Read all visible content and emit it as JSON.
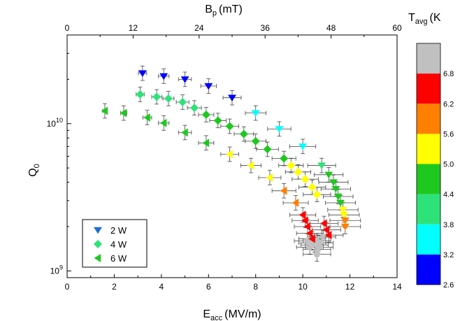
{
  "chart_data": {
    "type": "scatter",
    "title": "",
    "xlabel": "E",
    "xlabel_sub": "acc",
    "xlabel_unit": "(MV/m)",
    "ylabel": "Q",
    "ylabel_sub": "0",
    "top_xlabel": "B",
    "top_xlabel_sub": "p",
    "top_xlabel_unit": "(mT)",
    "xlim": [
      0,
      14
    ],
    "ylim": [
      900000000,
      40000000000
    ],
    "ylog": true,
    "x_ticks": [
      "0",
      "2",
      "4",
      "6",
      "8",
      "10",
      "12",
      "14"
    ],
    "top_x_ticks": [
      "0",
      "12",
      "24",
      "36",
      "48",
      "60"
    ],
    "y_ticks": [
      {
        "value": 1000000000,
        "base": "10",
        "exp": "9"
      },
      {
        "value": 10000000000,
        "base": "10",
        "exp": "10"
      }
    ],
    "legend_position": "bottom-left",
    "colorbar": {
      "title": "T",
      "title_sub": "avg",
      "title_unit": "(K",
      "ticks": [
        "2.6",
        "3.2",
        "3.8",
        "4.4",
        "5.0",
        "5.6",
        "6.2",
        "6.8"
      ],
      "bands": [
        {
          "from": 2.6,
          "to": 3.2,
          "color": "#0000ff"
        },
        {
          "from": 3.2,
          "to": 3.8,
          "color": "#00ffff"
        },
        {
          "from": 3.8,
          "to": 4.4,
          "color": "#2ee27a"
        },
        {
          "from": 4.4,
          "to": 5.0,
          "color": "#1fc81f"
        },
        {
          "from": 5.0,
          "to": 5.6,
          "color": "#ffff00"
        },
        {
          "from": 5.6,
          "to": 6.2,
          "color": "#ff7f00"
        },
        {
          "from": 6.2,
          "to": 6.8,
          "color": "#ff0000"
        },
        {
          "from": 6.8,
          "to": 7.4,
          "color": "#c0c0c0"
        }
      ]
    },
    "series": [
      {
        "name": "2 W",
        "marker": "triangle-down",
        "legend_color": "#1e6fd0",
        "points": [
          {
            "x": 3.2,
            "y": 22000000000,
            "t": 3.0
          },
          {
            "x": 4.1,
            "y": 21000000000,
            "t": 3.0
          },
          {
            "x": 5.0,
            "y": 20000000000,
            "t": 3.0
          },
          {
            "x": 6.0,
            "y": 18000000000,
            "t": 3.0
          },
          {
            "x": 7.0,
            "y": 15000000000,
            "t": 3.0
          },
          {
            "x": 8.0,
            "y": 11800000000,
            "t": 3.4
          },
          {
            "x": 9.0,
            "y": 9200000000,
            "t": 3.4
          },
          {
            "x": 10.0,
            "y": 7000000000,
            "t": 3.4
          },
          {
            "x": 10.8,
            "y": 5200000000,
            "t": 4.2
          },
          {
            "x": 11.1,
            "y": 4500000000,
            "t": 4.6
          },
          {
            "x": 11.3,
            "y": 4000000000,
            "t": 4.6
          },
          {
            "x": 11.4,
            "y": 3600000000,
            "t": 4.6
          },
          {
            "x": 11.5,
            "y": 3200000000,
            "t": 4.6
          },
          {
            "x": 11.6,
            "y": 2900000000,
            "t": 4.6
          },
          {
            "x": 11.7,
            "y": 2600000000,
            "t": 5.2
          },
          {
            "x": 11.75,
            "y": 2400000000,
            "t": 5.4
          },
          {
            "x": 11.8,
            "y": 2200000000,
            "t": 5.8
          },
          {
            "x": 11.8,
            "y": 2000000000,
            "t": 5.8
          }
        ]
      },
      {
        "name": "4 W",
        "marker": "diamond",
        "legend_color": "#2ee27a",
        "points": [
          {
            "x": 3.1,
            "y": 15800000000,
            "t": 4.0
          },
          {
            "x": 3.8,
            "y": 15200000000,
            "t": 4.0
          },
          {
            "x": 4.3,
            "y": 14800000000,
            "t": 4.0
          },
          {
            "x": 4.9,
            "y": 14000000000,
            "t": 4.0
          },
          {
            "x": 5.4,
            "y": 12800000000,
            "t": 4.0
          },
          {
            "x": 5.9,
            "y": 11500000000,
            "t": 4.6
          },
          {
            "x": 6.4,
            "y": 10500000000,
            "t": 4.6
          },
          {
            "x": 6.9,
            "y": 9600000000,
            "t": 4.6
          },
          {
            "x": 7.5,
            "y": 8500000000,
            "t": 4.6
          },
          {
            "x": 8.0,
            "y": 7600000000,
            "t": 4.6
          },
          {
            "x": 8.5,
            "y": 6700000000,
            "t": 4.6
          },
          {
            "x": 9.2,
            "y": 5800000000,
            "t": 4.6
          },
          {
            "x": 9.5,
            "y": 5200000000,
            "t": 5.2
          },
          {
            "x": 9.8,
            "y": 4700000000,
            "t": 5.2
          },
          {
            "x": 10.1,
            "y": 4200000000,
            "t": 5.2
          },
          {
            "x": 10.4,
            "y": 3700000000,
            "t": 5.2
          },
          {
            "x": 10.6,
            "y": 3300000000,
            "t": 5.2
          },
          {
            "x": 10.6,
            "y": 1600000000,
            "t": 7.0
          },
          {
            "x": 10.7,
            "y": 1450000000,
            "t": 7.0
          },
          {
            "x": 10.6,
            "y": 1300000000,
            "t": 7.0
          },
          {
            "x": 10.4,
            "y": 1550000000,
            "t": 7.0
          },
          {
            "x": 10.3,
            "y": 1450000000,
            "t": 7.0
          },
          {
            "x": 10.2,
            "y": 1600000000,
            "t": 7.0
          }
        ]
      },
      {
        "name": "6 W",
        "marker": "triangle-left",
        "legend_color": "#1fc81f",
        "points": [
          {
            "x": 1.6,
            "y": 12200000000,
            "t": 4.6
          },
          {
            "x": 2.4,
            "y": 11800000000,
            "t": 4.6
          },
          {
            "x": 3.4,
            "y": 11000000000,
            "t": 4.6
          },
          {
            "x": 4.1,
            "y": 10100000000,
            "t": 4.6
          },
          {
            "x": 5.0,
            "y": 8700000000,
            "t": 4.6
          },
          {
            "x": 5.9,
            "y": 7400000000,
            "t": 4.6
          },
          {
            "x": 6.9,
            "y": 6200000000,
            "t": 5.2
          },
          {
            "x": 7.8,
            "y": 5200000000,
            "t": 5.2
          },
          {
            "x": 8.6,
            "y": 4300000000,
            "t": 5.2
          },
          {
            "x": 9.2,
            "y": 3500000000,
            "t": 5.8
          },
          {
            "x": 9.7,
            "y": 2900000000,
            "t": 5.8
          },
          {
            "x": 10.0,
            "y": 2400000000,
            "t": 6.4
          },
          {
            "x": 10.1,
            "y": 2200000000,
            "t": 6.4
          },
          {
            "x": 10.2,
            "y": 2000000000,
            "t": 6.4
          },
          {
            "x": 10.3,
            "y": 1800000000,
            "t": 6.4
          },
          {
            "x": 10.4,
            "y": 1650000000,
            "t": 6.4
          },
          {
            "x": 10.5,
            "y": 1500000000,
            "t": 7.0
          },
          {
            "x": 10.6,
            "y": 1400000000,
            "t": 7.0
          },
          {
            "x": 10.7,
            "y": 1550000000,
            "t": 7.0
          },
          {
            "x": 10.8,
            "y": 1700000000,
            "t": 7.0
          },
          {
            "x": 10.9,
            "y": 2100000000,
            "t": 6.4
          },
          {
            "x": 11.0,
            "y": 1900000000,
            "t": 6.4
          },
          {
            "x": 11.1,
            "y": 1750000000,
            "t": 6.4
          }
        ]
      }
    ]
  }
}
